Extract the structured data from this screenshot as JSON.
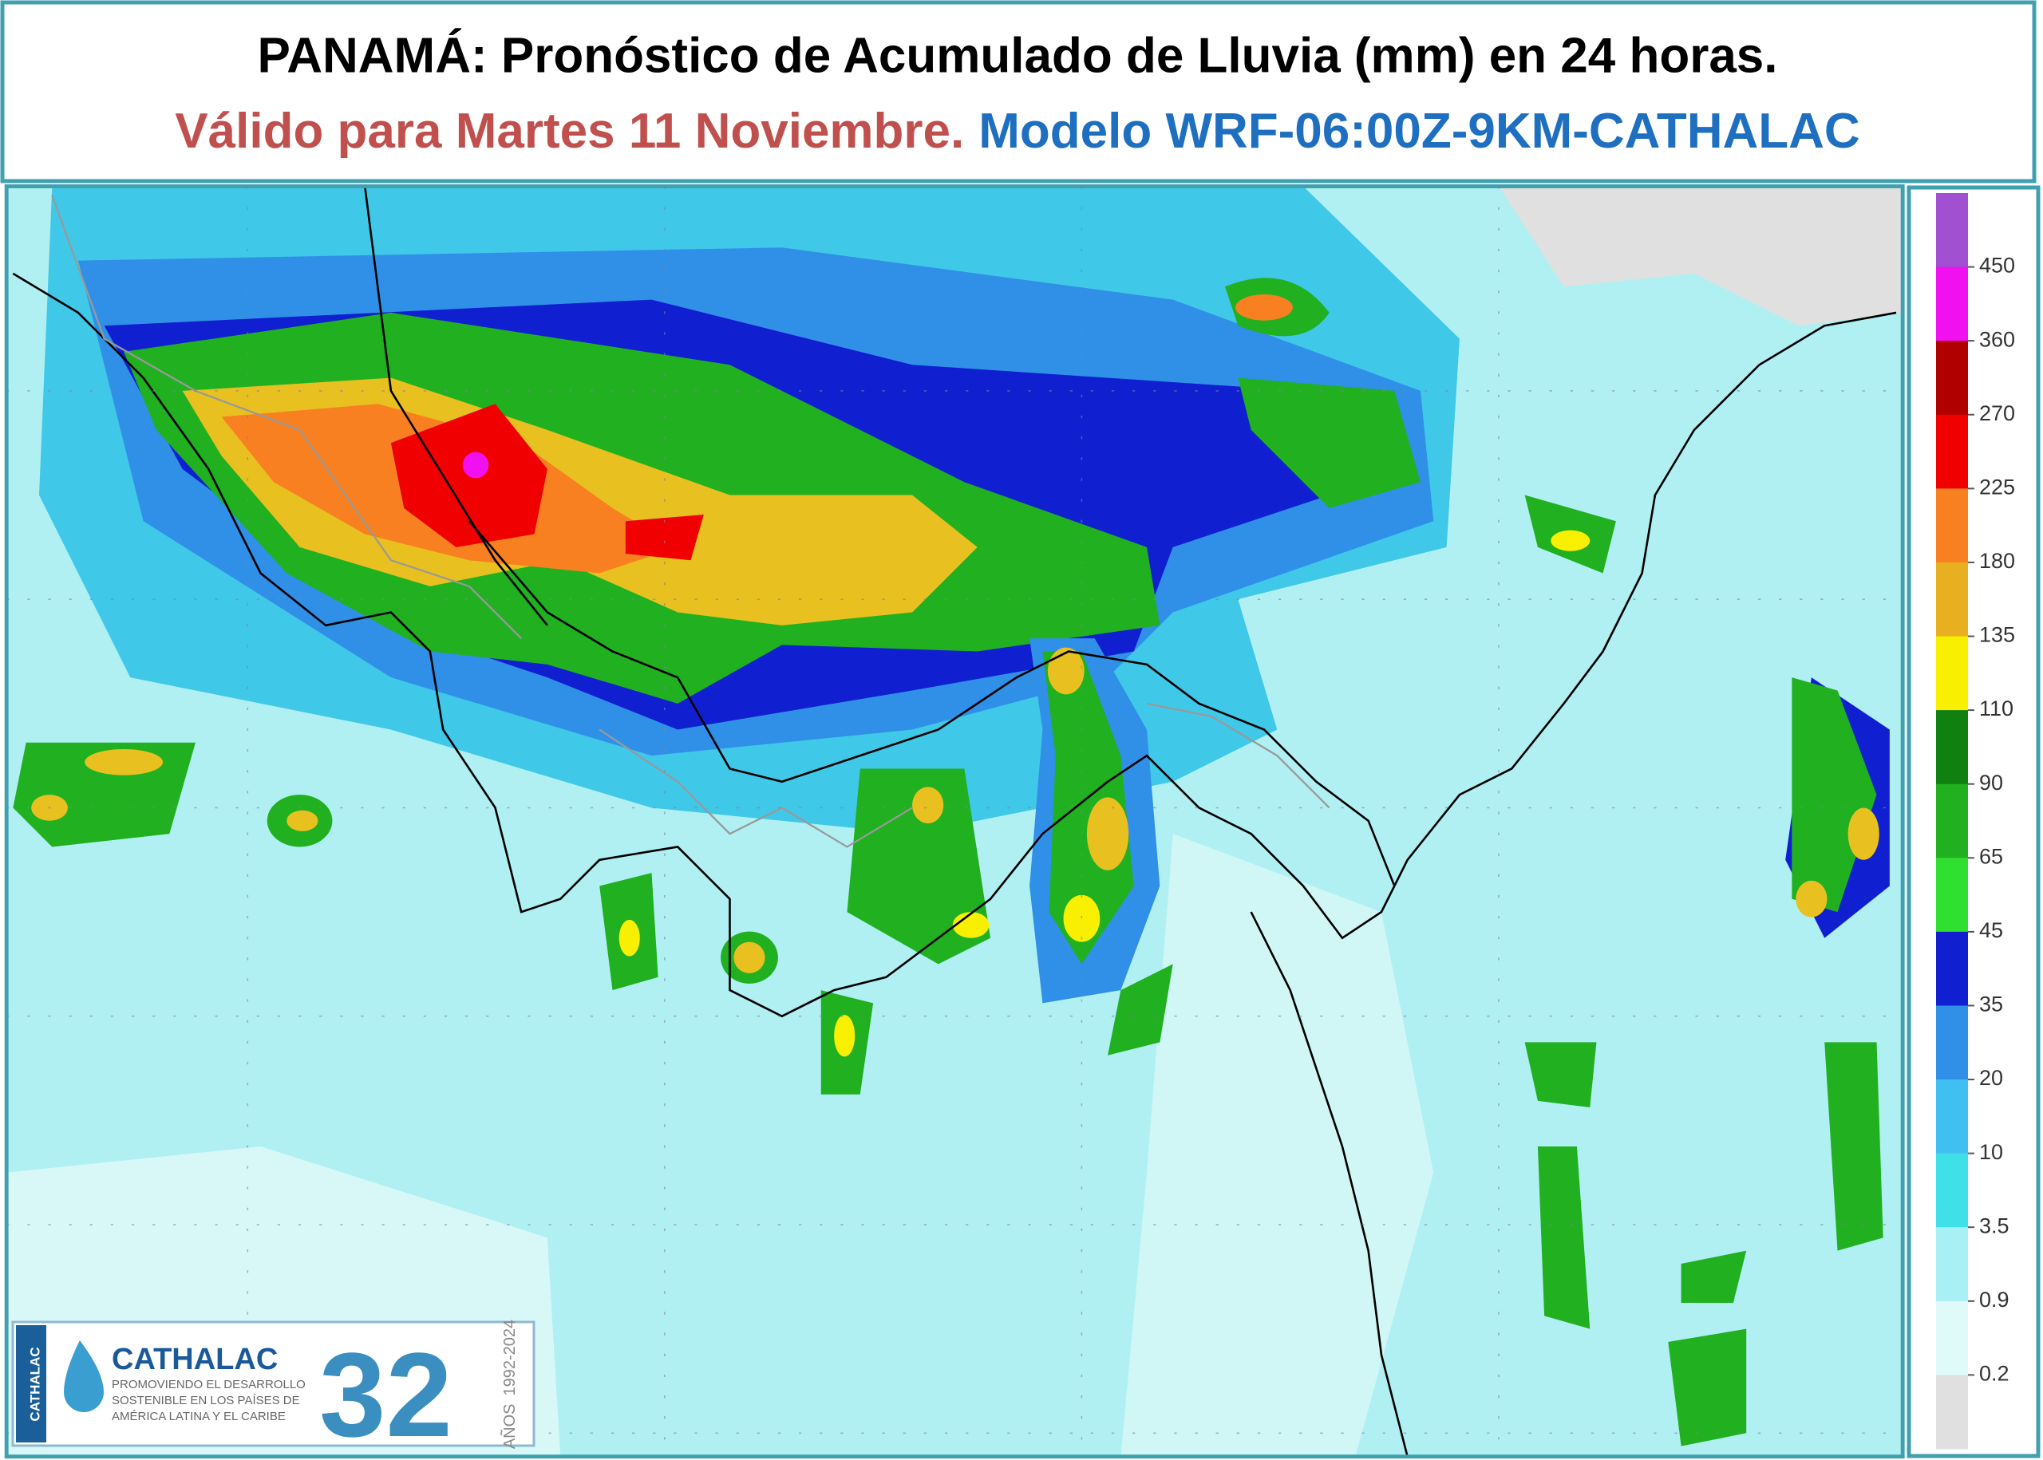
{
  "header": {
    "title": "PANAMÁ: Pronóstico de Acumulado de Lluvia (mm) en 24 horas.",
    "valid": "Válido para Martes 11 Noviembre.",
    "model": "Modelo WRF-06:00Z-9KM-CATHALAC"
  },
  "legend": {
    "labels": [
      "450",
      "360",
      "270",
      "225",
      "180",
      "135",
      "110",
      "90",
      "65",
      "45",
      "35",
      "20",
      "10",
      "3.5",
      "0.9",
      "0.2"
    ],
    "colors": [
      "#a050d0",
      "#f010f0",
      "#b00000",
      "#f00000",
      "#f88020",
      "#e8b020",
      "#f8f000",
      "#108010",
      "#20b020",
      "#30e030",
      "#1020d0",
      "#3090e8",
      "#40c0f0",
      "#40e0e8",
      "#a8f0f4",
      "#e0fafa",
      "#e0e0e0"
    ]
  },
  "logo": {
    "name": "CATHALAC",
    "tagline": [
      "PROMOVIENDO EL DESARROLLO",
      "SOSTENIBLE EN LOS PAÍSES DE",
      "AMÉRICA LATINA Y EL CARIBE"
    ],
    "years": "32",
    "years_label": "AÑOS",
    "period": "1992-2024",
    "side": "CATHALAC"
  }
}
